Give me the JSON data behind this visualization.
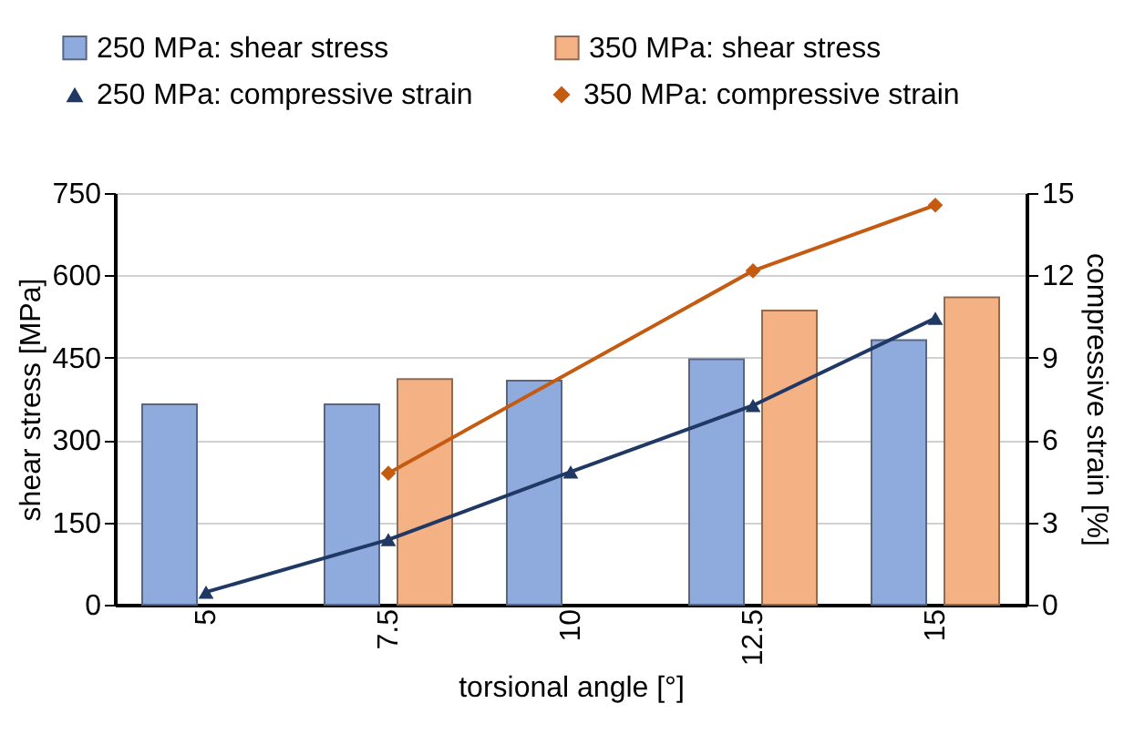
{
  "chart_data": {
    "type": "bar",
    "xlabel": "torsional angle [°]",
    "ylabel": "shear stress [MPa]",
    "y2label": "compressive strain [%]",
    "categories": [
      "5",
      "7.5",
      "10",
      "12.5",
      "15"
    ],
    "series": [
      {
        "name": "250 MPa: shear stress",
        "color": "#8faadc",
        "values": [
          365,
          365,
          408,
          447,
          482
        ]
      },
      {
        "name": "350 MPa: shear stress",
        "color": "#f4b183",
        "values": [
          null,
          411,
          null,
          536,
          560
        ]
      },
      {
        "name": "250 MPa: compressive strain",
        "type": "line",
        "axis": "y2",
        "marker": "triangle",
        "color": "#203864",
        "values": [
          0.46,
          2.37,
          4.84,
          7.26,
          10.44
        ]
      },
      {
        "name": "350 MPa: compressive strain",
        "type": "line",
        "axis": "y2",
        "marker": "diamond",
        "color": "#c55a11",
        "values": [
          null,
          4.79,
          null,
          12.17,
          14.56
        ]
      }
    ],
    "ylim": [
      0,
      750
    ],
    "yticks": [
      0,
      150,
      300,
      450,
      600,
      750
    ],
    "y2lim": [
      0,
      15
    ],
    "y2ticks": [
      0,
      3,
      6,
      9,
      12,
      15
    ],
    "grid": "y",
    "legend": "top"
  }
}
